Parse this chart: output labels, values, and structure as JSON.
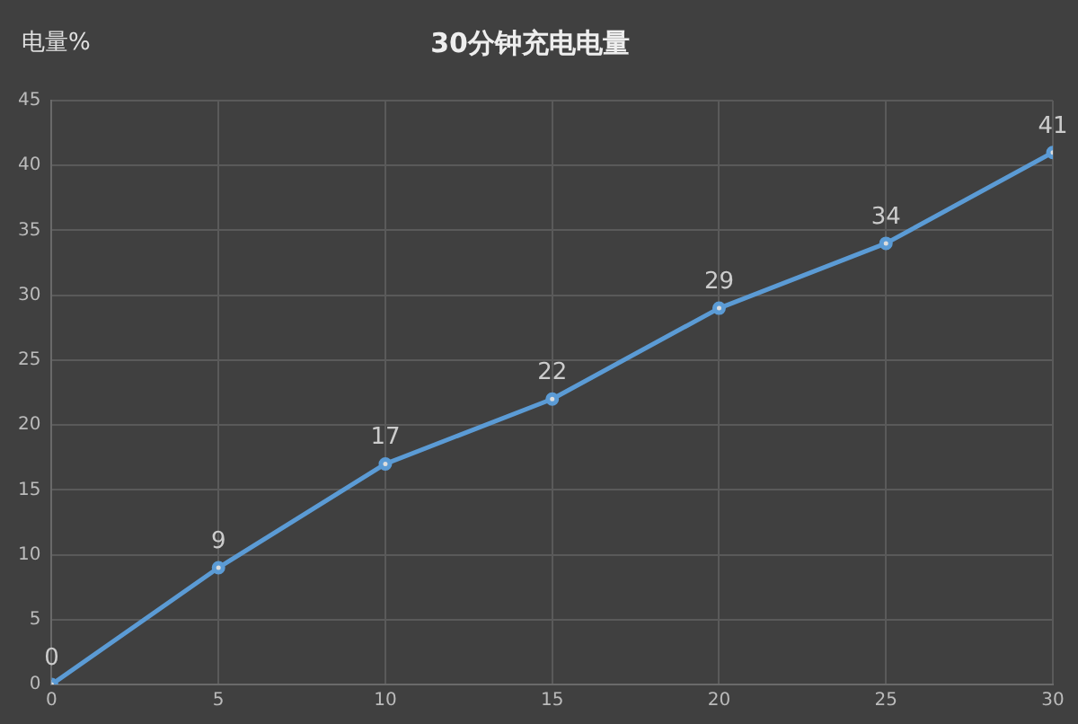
{
  "chart_data": {
    "type": "line",
    "title": "30分钟充电电量",
    "ylabel": "电量%",
    "x": [
      0,
      5,
      10,
      15,
      20,
      25,
      30
    ],
    "series": [
      {
        "color": "#5b9bd5",
        "values": [
          0,
          9,
          17,
          22,
          29,
          34,
          41
        ]
      }
    ],
    "xlim": [
      0,
      30
    ],
    "xticks": [
      0,
      5,
      10,
      15,
      20,
      25,
      30
    ],
    "ylim": [
      0,
      45
    ],
    "yticks": [
      0,
      5,
      10,
      15,
      20,
      25,
      30,
      35,
      40,
      45
    ],
    "grid": true,
    "data_labels": true,
    "marker": "circle",
    "line_style": "solid"
  }
}
